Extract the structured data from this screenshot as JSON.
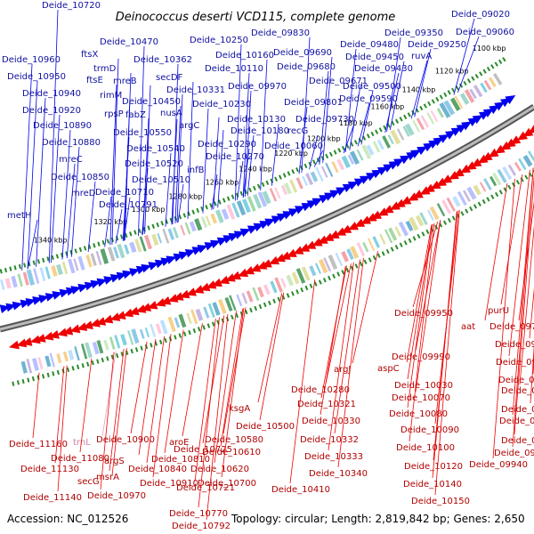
{
  "title": "Deinococcus deserti VCD115, complete genome",
  "footer": {
    "accession": "Accession: NC_012526",
    "summary": "Topology: circular; Length: 2,819,842 bp; Genes: 2,650"
  },
  "colors": {
    "forward_strand": "#0000ee",
    "reverse_strand": "#ee0000",
    "rna_gene": "#e8a0c0",
    "backbone": "#888888",
    "tick": "#2a8a2a"
  },
  "scale_ticks": [
    "1100 kbp",
    "1120 kbp",
    "1140 kbp",
    "1160 kbp",
    "1180 kbp",
    "1200 kbp",
    "1220 kbp",
    "1240 kbp",
    "1260 kbp",
    "1280 kbp",
    "1300 kbp",
    "1320 kbp",
    "1340 kbp"
  ],
  "forward_labels": [
    "Deide_10720",
    "Deide_09020",
    "Deide_10960",
    "ftsX",
    "Deide_10470",
    "Deide_10250",
    "Deide_09830",
    "Deide_09350",
    "Deide_09060",
    "Deide_10950",
    "trmD",
    "Deide_10362",
    "Deide_10160",
    "Deide_09690",
    "Deide_09480",
    "Deide_09250",
    "ftsE",
    "mreB",
    "Deide_10110",
    "Deide_09680",
    "Deide_09450",
    "ruvA",
    "Deide_10940",
    "rimM",
    "secDF",
    "Deide_09430",
    "Deide_09671",
    "Deide_10450",
    "Deide_10331",
    "Deide_09970",
    "Deide_09500",
    "Deide_10920",
    "rpsP",
    "fabZ",
    "nusA",
    "Deide_10230",
    "Deide_09801",
    "Deide_09590",
    "Deide_10890",
    "argC",
    "Deide_10130",
    "Deide_09730",
    "Deide_10550",
    "Deide_10180",
    "recG",
    "Deide_10880",
    "Deide_10540",
    "Deide_10290",
    "Deide_10060",
    "mreC",
    "Deide_10520",
    "infB",
    "Deide_10270",
    "Deide_10850",
    "Deide_10510",
    "mreD",
    "Deide_10710",
    "Deide_10791",
    "metH"
  ],
  "reverse_labels": [
    "purU",
    "Deide_09950",
    "aat",
    "Deide_09711",
    "Deide_09720",
    "Deide_09740",
    "argJ",
    "Deide_09990",
    "aspC",
    "Deide_09770",
    "Deide_10030",
    "Deide_09800",
    "Deide_10070",
    "Deide_09810",
    "Deide_10280",
    "Deide_09840",
    "Deide_10080",
    "Deide_10321",
    "ksgA",
    "Deide_10090",
    "Deide_09860",
    "Deide_10330",
    "Deide_10500",
    "Deide_10725",
    "Deide_10332",
    "Deide_10100",
    "Deide_09900",
    "Deide_11160",
    "trnL",
    "Deide_10900",
    "aroE",
    "Deide_10580",
    "Deide_09940",
    "Deide_11080",
    "argS",
    "Deide_10810",
    "Deide_10610",
    "Deide_10333",
    "Deide_10120",
    "Deide_11130",
    "msrA",
    "Deide_10840",
    "Deide_10620",
    "Deide_10340",
    "secG",
    "Deide_10910",
    "Deide_10721",
    "Deide_10700",
    "Deide_10140",
    "Deide_11140",
    "Deide_10970",
    "Deide_10410",
    "Deide_10150",
    "Deide_10770",
    "Deide_10792"
  ]
}
